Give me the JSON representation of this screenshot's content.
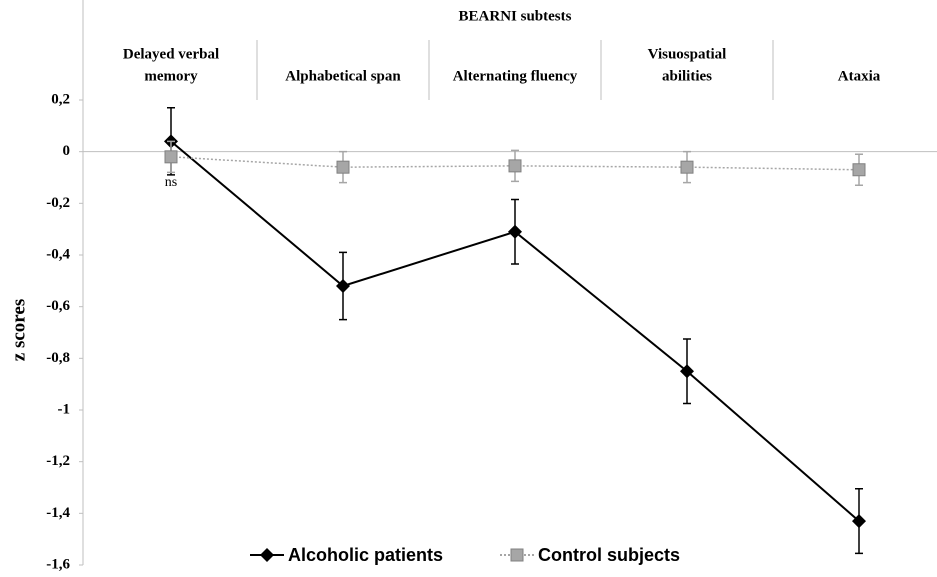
{
  "chart_data": {
    "type": "line",
    "title": "BEARNI subtests",
    "ylabel": "z scores",
    "categories": [
      [
        "Delayed verbal",
        "memory"
      ],
      [
        "Alphabetical span"
      ],
      [
        "Alternating fluency"
      ],
      [
        "Visuospatial",
        "abilities"
      ],
      [
        "Ataxia"
      ]
    ],
    "series": [
      {
        "name": "Alcoholic patients",
        "color": "#000000",
        "marker": "diamond",
        "dash": "solid",
        "values": [
          0.04,
          -0.52,
          -0.31,
          -0.85,
          -1.43
        ],
        "errors": [
          0.13,
          0.13,
          0.125,
          0.125,
          0.125
        ]
      },
      {
        "name": "Control subjects",
        "color": "#a6a6a6",
        "marker": "square",
        "dash": "dotted",
        "values": [
          -0.02,
          -0.06,
          -0.055,
          -0.06,
          -0.07
        ],
        "errors": [
          0.06,
          0.06,
          0.06,
          0.06,
          0.06
        ]
      }
    ],
    "annotations": [
      {
        "text": "ns",
        "category": 0
      }
    ],
    "ylim": [
      -1.6,
      0.2
    ],
    "yticks": [
      {
        "value": 0.2,
        "label": "0,2"
      },
      0,
      {
        "value": -0.2,
        "label": "-0,2"
      },
      {
        "value": -0.4,
        "label": "-0,4"
      },
      {
        "value": -0.6,
        "label": "-0,6"
      },
      {
        "value": -0.8,
        "label": "-0,8"
      },
      -1,
      {
        "value": -1.2,
        "label": "-1,2"
      },
      {
        "value": -1.4,
        "label": "-1,4"
      },
      {
        "value": -1.6,
        "label": "-1,6"
      }
    ],
    "legend": "bottom"
  }
}
